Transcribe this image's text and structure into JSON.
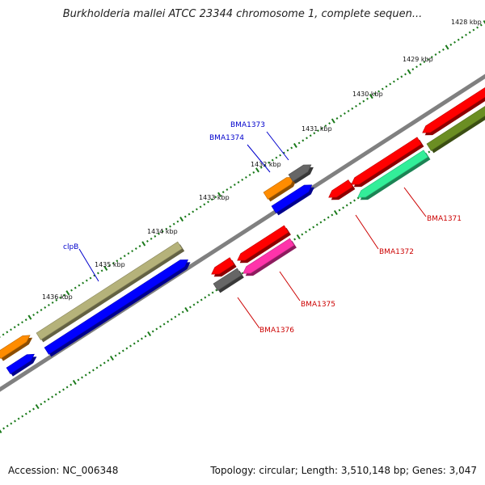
{
  "title": "Burkholderia mallei ATCC 23344 chromosome 1, complete sequen...",
  "footer": {
    "accession": "Accession: NC_006348",
    "summary": "Topology: circular; Length: 3,510,148 bp; Genes: 3,047"
  },
  "ruler": {
    "labels": [
      "1428 kbp",
      "1429 kbp",
      "1430 kbp",
      "1431 kbp",
      "1432 kbp",
      "1433 kbp",
      "1434 kbp",
      "1435 kbp",
      "1436 kbp"
    ],
    "tick_color": "#1a7a1a"
  },
  "genes": [
    {
      "label": "BMA1373",
      "strand": "forward",
      "label_color": "#0000cc"
    },
    {
      "label": "BMA1374",
      "strand": "forward",
      "label_color": "#0000cc"
    },
    {
      "label": "clpB",
      "strand": "forward",
      "label_color": "#0000cc"
    },
    {
      "label": "BMA1371",
      "strand": "reverse",
      "label_color": "#cc0000"
    },
    {
      "label": "BMA1372",
      "strand": "reverse",
      "label_color": "#cc0000"
    },
    {
      "label": "BMA1375",
      "strand": "reverse",
      "label_color": "#cc0000"
    },
    {
      "label": "BMA1376",
      "strand": "reverse",
      "label_color": "#cc0000"
    }
  ],
  "colors": {
    "backbone": "#808080",
    "orange": "#ff8c00",
    "blue": "#0000ff",
    "olive": "#b5b27a",
    "gray": "#666666",
    "red": "#ff0000",
    "green": "#6b8e23",
    "mint": "#33ee99",
    "pink": "#ff33aa"
  }
}
